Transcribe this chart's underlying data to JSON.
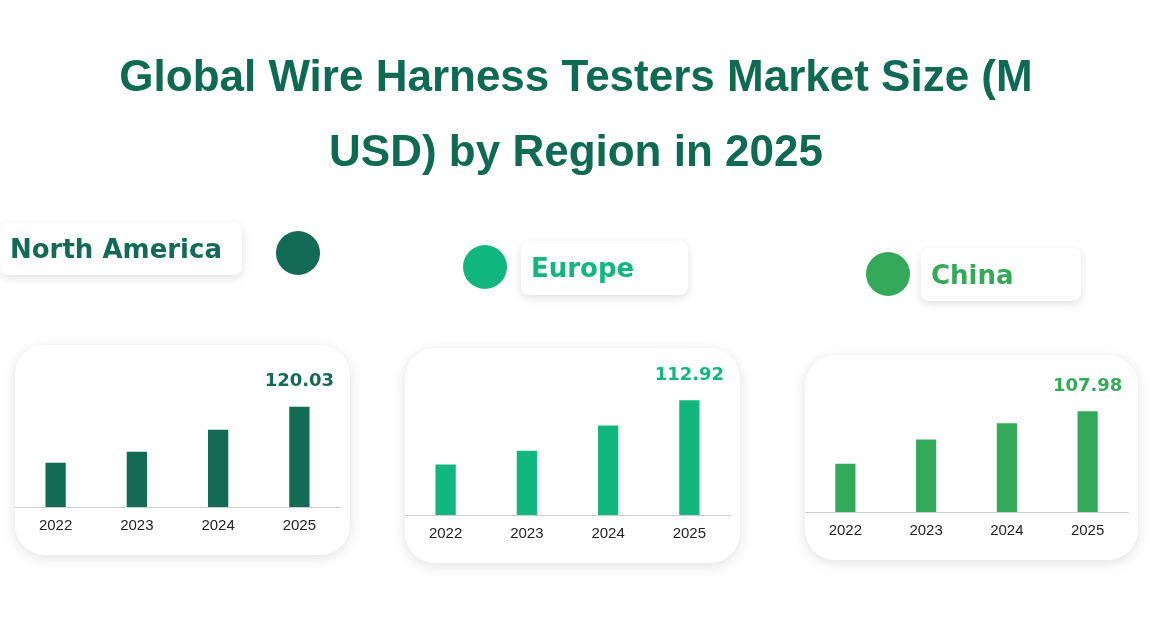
{
  "chart_data": [
    {
      "type": "bar",
      "title": "Global Wire Harness Testers Market Size (M USD) by Region in 2025",
      "subtitle": "North America",
      "categories": [
        "2022",
        "2023",
        "2024",
        "2025"
      ],
      "series": [
        {
          "color": "#136b55",
          "values": [
            52.8,
            66.0,
            92.4,
            120.03
          ],
          "value_labels": [
            null,
            null,
            null,
            "120.03"
          ]
        }
      ]
    },
    {
      "type": "bar",
      "subtitle": "Europe",
      "categories": [
        "2022",
        "2023",
        "2024",
        "2025"
      ],
      "series": [
        {
          "color": "#12b77f",
          "values": [
            49.7,
            63.2,
            88.1,
            112.92
          ],
          "value_labels": [
            null,
            null,
            null,
            "112.92"
          ]
        }
      ]
    },
    {
      "type": "bar",
      "subtitle": "China",
      "categories": [
        "2022",
        "2023",
        "2024",
        "2025"
      ],
      "series": [
        {
          "color": "#35a95a",
          "values": [
            51.8,
            77.7,
            95.0,
            107.98
          ],
          "value_labels": [
            null,
            null,
            null,
            "107.98"
          ]
        }
      ]
    }
  ]
}
